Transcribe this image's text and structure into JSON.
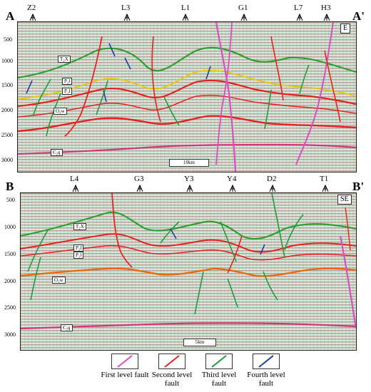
{
  "top_section": {
    "start_label": "A",
    "end_label": "A'",
    "wells": [
      "Z2",
      "L3",
      "L1",
      "G1",
      "L7",
      "H3"
    ],
    "depth_ticks": [
      "500",
      "1000",
      "1500",
      "2000",
      "2500",
      "3000"
    ],
    "horizons": [
      "T₂X",
      "P₂l",
      "P₁l",
      "O₃w",
      "Є₂q"
    ],
    "direction": "E",
    "scale": "10km"
  },
  "bottom_section": {
    "start_label": "B",
    "end_label": "B'",
    "wells": [
      "L4",
      "G3",
      "Y3",
      "Y4",
      "D2",
      "T1"
    ],
    "depth_ticks": [
      "500",
      "1000",
      "1500",
      "2000",
      "2500",
      "3000"
    ],
    "horizons": [
      "T₂X",
      "P₂l",
      "P₁l",
      "O₃w",
      "Є₂q"
    ],
    "direction": "SE",
    "scale": "5km"
  },
  "legend": [
    {
      "label": "First level fault",
      "color": "#d94fc4"
    },
    {
      "label": "Second level fault",
      "color": "#e8231f"
    },
    {
      "label": "Third level fault",
      "color": "#1e9e3a"
    },
    {
      "label": "Fourth level fault",
      "color": "#1f3fa8"
    }
  ],
  "horizon_colors": {
    "T2X": "#2f9e2f",
    "P2l": "#e8c700",
    "P1l": "#e42020",
    "O3w": "#e86a0a",
    "E2q": "#d2367a"
  }
}
